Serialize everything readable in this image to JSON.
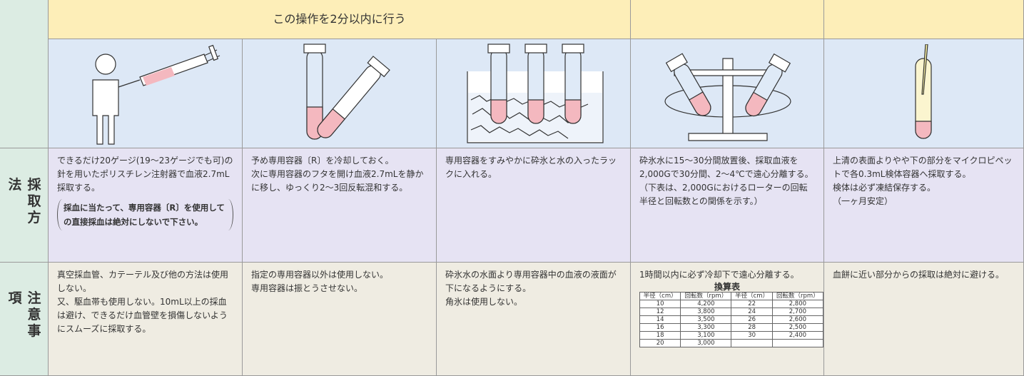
{
  "header": {
    "banner": "この操作を2分以内に行う"
  },
  "row_labels": [
    "採取方法",
    "注意事項"
  ],
  "method": [
    [
      "できるだけ20ゲージ(19〜23ゲージでも可)の針を用いたポリスチレン注射器で血液2.7mL採取する。"
    ],
    [
      "予め専用容器〔R〕を冷却しておく。",
      "次に専用容器のフタを開け血液2.7mLを静かに移し、ゆっくり2〜3回反転混和する。"
    ],
    [
      "専用容器をすみやかに砕氷と水の入ったラックに入れる。"
    ],
    [
      "砕氷水に15〜30分間放置後、採取血液を2,000Gで30分間、2〜4℃で遠心分離する。（下表は、2,000Gにおけるローターの回転半径と回転数との関係を示す。）"
    ],
    [
      "上清の表面よりやや下の部分をマイクロピペットで各0.3mL検体容器へ採取する。",
      "検体は必ず凍結保存する。",
      "（一ヶ月安定）"
    ]
  ],
  "method_note": "採血に当たって、専用容器〔R〕を使用しての直接採血は絶対にしないで下さい。",
  "notes": [
    [
      "真空採血管、カテーテル及び他の方法は使用しない。",
      "又、駆血帯も使用しない。10mL以上の採血は避け、できるだけ血管壁を損傷しないようにスムーズに採取する。"
    ],
    [
      "指定の専用容器以外は使用しない。",
      "専用容器は振とうさせない。"
    ],
    [
      "砕氷水の水面より専用容器中の血液の液面が下になるようにする。",
      "角氷は使用しない。"
    ],
    [
      "1時間以内に必ず冷却下で遠心分離する。"
    ],
    [
      "血餅に近い部分からの採取は絶対に避ける。"
    ]
  ],
  "conversion_table": {
    "title": "換算表",
    "header": [
      "半径（cm）",
      "回転数（rpm）",
      "半径（cm）",
      "回転数（rpm）"
    ],
    "rows": [
      [
        "10",
        "4,200",
        "22",
        "2,800"
      ],
      [
        "12",
        "3,800",
        "24",
        "2,700"
      ],
      [
        "14",
        "3,500",
        "26",
        "2,600"
      ],
      [
        "16",
        "3,300",
        "28",
        "2,500"
      ],
      [
        "18",
        "3,100",
        "30",
        "2,400"
      ],
      [
        "20",
        "3,000"
      ]
    ]
  }
}
